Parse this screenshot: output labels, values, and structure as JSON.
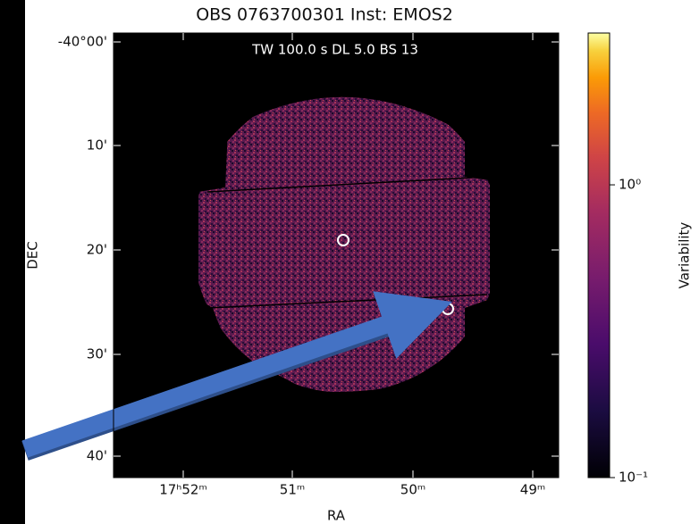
{
  "figure": {
    "title": "OBS 0763700301   Inst: EMOS2",
    "annotation": "TW 100.0 s    DL 5.0    BS 13",
    "x_label": "RA",
    "y_label": "DEC",
    "x_ticks": [
      "17ʰ52ᵐ",
      "51ᵐ",
      "50ᵐ",
      "49ᵐ"
    ],
    "y_ticks": [
      "-40°00'",
      "10'",
      "20'",
      "30'",
      "40'"
    ],
    "colorbar": {
      "label": "Variability",
      "log": true,
      "lim": [
        0.1,
        3.3
      ],
      "ticks": [
        {
          "value": 0.1,
          "label": "10⁻¹"
        },
        {
          "value": 1,
          "label": "10⁰"
        }
      ]
    }
  }
}
